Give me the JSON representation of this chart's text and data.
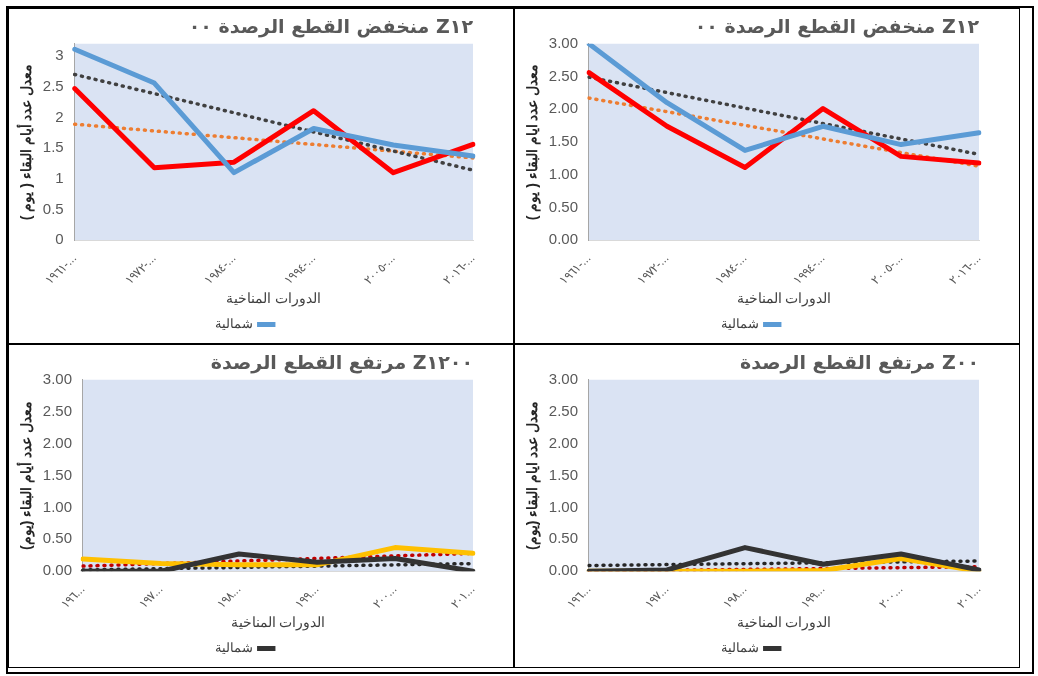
{
  "chart_data": [
    {
      "type": "line",
      "title": "منخفض القطع الرصدة ٠٠ Z١٢",
      "xlabel": "الدورات المناخية",
      "ylabel": "معدل عدد أيام البقاء ( يوم )",
      "categories": [
        "١٩٦١-...",
        "١٩٧٢-...",
        "١٩٨٤-...",
        "١٩٩٤-...",
        "٢٠٠٥-...",
        "٢٠١٦-..."
      ],
      "ylim": [
        0,
        3.2
      ],
      "yticks": [
        0,
        0.5,
        1,
        1.5,
        2,
        2.5,
        3
      ],
      "grid": false,
      "legend": "bottom",
      "marker": "none",
      "series": [
        {
          "name": "شمالية",
          "color": "#5b9bd5",
          "values": [
            3.11,
            2.56,
            1.1,
            1.82,
            1.55,
            1.37
          ]
        },
        {
          "color": "#ff0000",
          "values": [
            2.47,
            1.18,
            1.27,
            2.11,
            1.1,
            1.56
          ]
        },
        {
          "color": "#404040",
          "line_style": "dotted",
          "values": [
            2.7,
            null,
            null,
            null,
            null,
            1.14
          ]
        },
        {
          "color": "#ed7d31",
          "line_style": "dotted",
          "values": [
            1.89,
            null,
            null,
            null,
            null,
            1.34
          ]
        }
      ]
    },
    {
      "type": "line",
      "title": "منخفض القطع الرصدة ٠٠ Z١٢",
      "xlabel": "الدورات المناخية",
      "ylabel": "معدل عدد ايام البقاء ( يوم )",
      "categories": [
        "١٩٦١-...",
        "١٩٧٢-...",
        "١٩٨٤-...",
        "١٩٩٤-...",
        "٢٠٠٥-...",
        "٢٠١٦-..."
      ],
      "ylim": [
        0,
        3
      ],
      "yticks": [
        {
          "value": 0,
          "label": "0.00"
        },
        {
          "value": 0.5,
          "label": "0.50"
        },
        {
          "value": 1,
          "label": "1.00"
        },
        {
          "value": 1.5,
          "label": "1.50"
        },
        {
          "value": 2,
          "label": "2.00"
        },
        {
          "value": 2.5,
          "label": "2.50"
        },
        {
          "value": 3,
          "label": "3.00"
        }
      ],
      "grid": false,
      "legend": "bottom",
      "marker": "none",
      "series": [
        {
          "name": "شمالية",
          "color": "#5b9bd5",
          "values": [
            3.0,
            2.1,
            1.37,
            1.74,
            1.46,
            1.64
          ]
        },
        {
          "color": "#ff0000",
          "values": [
            2.56,
            1.74,
            1.11,
            2.01,
            1.28,
            1.18
          ]
        },
        {
          "color": "#404040",
          "line_style": "dotted",
          "values": [
            2.49,
            null,
            null,
            null,
            null,
            1.31
          ]
        },
        {
          "color": "#ed7d31",
          "line_style": "dotted",
          "values": [
            2.17,
            null,
            null,
            null,
            null,
            1.13
          ]
        }
      ]
    },
    {
      "type": "line",
      "title": "مرتفع القطع الرصدة Z١٢٠٠",
      "xlabel": "الدورات المناخية",
      "ylabel": "معدل عدد أيام البقاء (يوم)",
      "categories": [
        "١٩٦...",
        "١٩٧...",
        "١٩٨...",
        "١٩٩...",
        "٢٠٠...",
        "٢٠١..."
      ],
      "ylim": [
        0,
        3
      ],
      "yticks": [
        {
          "value": 0,
          "label": "0.00"
        },
        {
          "value": 0.5,
          "label": "0.50"
        },
        {
          "value": 1,
          "label": "1.00"
        },
        {
          "value": 1.5,
          "label": "1.50"
        },
        {
          "value": 2,
          "label": "2.00"
        },
        {
          "value": 2.5,
          "label": "2.50"
        },
        {
          "value": 3,
          "label": "3.00"
        }
      ],
      "grid": false,
      "legend": "bottom",
      "marker": "none",
      "series": [
        {
          "name": "شمالية",
          "color": "#333333",
          "values": [
            0,
            0,
            0.27,
            0.14,
            0.2,
            0
          ]
        },
        {
          "color": "#ffc000",
          "values": [
            0.19,
            0.12,
            0.1,
            0.1,
            0.37,
            0.28
          ]
        },
        {
          "color": "#c00000",
          "line_style": "dotted",
          "values": [
            0.08,
            null,
            null,
            null,
            null,
            0.28
          ]
        },
        {
          "color": "#262626",
          "line_style": "dotted",
          "values": [
            0.02,
            null,
            null,
            null,
            null,
            0.12
          ]
        }
      ]
    },
    {
      "type": "line",
      "title": "مرتفع القطع الرصدة Z٠٠",
      "xlabel": "الدورات المناخية",
      "ylabel": "معدل عدد ايام البقاء (يوم)",
      "categories": [
        "١٩٦...",
        "١٩٧...",
        "١٩٨...",
        "١٩٩...",
        "٢٠٠...",
        "٢٠١..."
      ],
      "ylim": [
        0,
        3
      ],
      "yticks": [
        {
          "value": 0,
          "label": "0.00"
        },
        {
          "value": 0.5,
          "label": "0.50"
        },
        {
          "value": 1,
          "label": "1.00"
        },
        {
          "value": 1.5,
          "label": "1.50"
        },
        {
          "value": 2,
          "label": "2.00"
        },
        {
          "value": 2.5,
          "label": "2.50"
        },
        {
          "value": 3,
          "label": "3.00"
        }
      ],
      "grid": false,
      "legend": "bottom",
      "marker": "none",
      "series": [
        {
          "name": "شمالية",
          "color": "#333333",
          "values": [
            0,
            0.02,
            0.37,
            0.11,
            0.27,
            0.02
          ]
        },
        {
          "color": "#ffc000",
          "values": [
            0,
            0,
            0,
            0.01,
            0.2,
            0
          ]
        },
        {
          "color": "#262626",
          "line_style": "dotted",
          "values": [
            0.09,
            null,
            null,
            null,
            null,
            0.16
          ]
        },
        {
          "color": "#c00000",
          "line_style": "dotted",
          "values": [
            0,
            null,
            null,
            null,
            null,
            0.07
          ]
        }
      ]
    }
  ]
}
